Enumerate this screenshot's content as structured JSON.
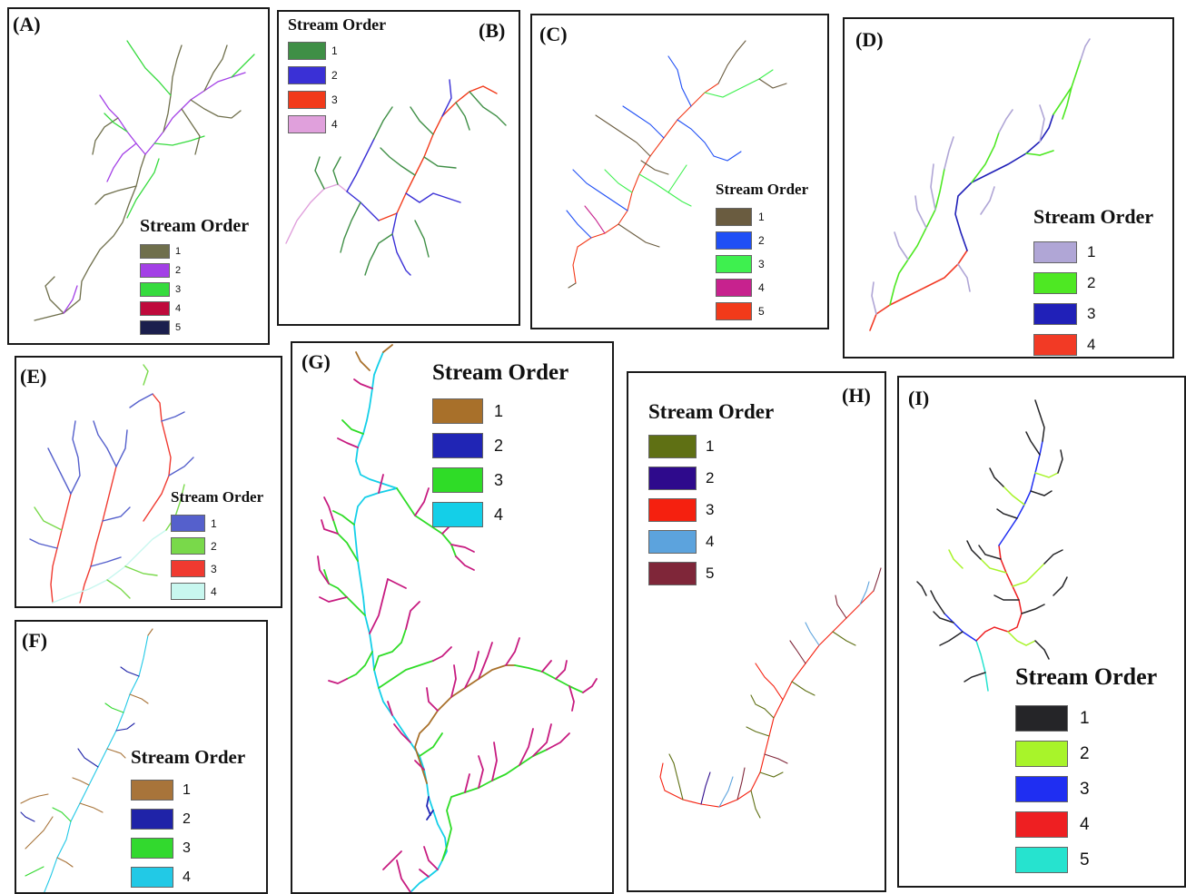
{
  "panels": [
    {
      "label": "(A)",
      "legend_title": "Stream Order",
      "classes": [
        {
          "order": "1",
          "color": "#6f6f4c"
        },
        {
          "order": "2",
          "color": "#a340e6"
        },
        {
          "order": "3",
          "color": "#36db3e"
        },
        {
          "order": "4",
          "color": "#bf0a3c"
        },
        {
          "order": "5",
          "color": "#1b1f4d"
        }
      ]
    },
    {
      "label": "(B)",
      "legend_title": "Stream Order",
      "classes": [
        {
          "order": "1",
          "color": "#3f8f46"
        },
        {
          "order": "2",
          "color": "#3a30d6"
        },
        {
          "order": "3",
          "color": "#f23a1a"
        },
        {
          "order": "4",
          "color": "#e0a0dc"
        }
      ]
    },
    {
      "label": "(C)",
      "legend_title": "Stream Order",
      "classes": [
        {
          "order": "1",
          "color": "#6a5c40"
        },
        {
          "order": "2",
          "color": "#1f4ff5"
        },
        {
          "order": "3",
          "color": "#3ef04f"
        },
        {
          "order": "4",
          "color": "#c7228e"
        },
        {
          "order": "5",
          "color": "#f23a1a"
        }
      ]
    },
    {
      "label": "(D)",
      "legend_title": "Stream Order",
      "classes": [
        {
          "order": "1",
          "color": "#b0a6d6"
        },
        {
          "order": "2",
          "color": "#4ee823"
        },
        {
          "order": "3",
          "color": "#2020b8"
        },
        {
          "order": "4",
          "color": "#f23a25"
        }
      ]
    },
    {
      "label": "(E)",
      "legend_title": "Stream Order",
      "classes": [
        {
          "order": "1",
          "color": "#5560cc"
        },
        {
          "order": "2",
          "color": "#79d94a"
        },
        {
          "order": "3",
          "color": "#f03a30"
        },
        {
          "order": "4",
          "color": "#c8f7ef"
        }
      ]
    },
    {
      "label": "(F)",
      "legend_title": "Stream Order",
      "classes": [
        {
          "order": "1",
          "color": "#a8743a"
        },
        {
          "order": "2",
          "color": "#1f23a8"
        },
        {
          "order": "3",
          "color": "#32d92e"
        },
        {
          "order": "4",
          "color": "#22c9e6"
        }
      ]
    },
    {
      "label": "(G)",
      "legend_title": "Stream Order",
      "classes": [
        {
          "order": "1",
          "color": "#a8702a"
        },
        {
          "order": "2",
          "color": "#2025b5"
        },
        {
          "order": "3",
          "color": "#2fdc27"
        },
        {
          "order": "4",
          "color": "#14cfe8"
        }
      ]
    },
    {
      "label": "(H)",
      "legend_title": "Stream Order",
      "classes": [
        {
          "order": "1",
          "color": "#5f7014"
        },
        {
          "order": "2",
          "color": "#2e0a8c"
        },
        {
          "order": "3",
          "color": "#f5200f"
        },
        {
          "order": "4",
          "color": "#5ca3dd"
        },
        {
          "order": "5",
          "color": "#7f2639"
        }
      ]
    },
    {
      "label": "(I)",
      "legend_title": "Stream Order",
      "classes": [
        {
          "order": "1",
          "color": "#252528"
        },
        {
          "order": "2",
          "color": "#a8f42a"
        },
        {
          "order": "3",
          "color": "#1f2ef2"
        },
        {
          "order": "4",
          "color": "#ee1f22"
        },
        {
          "order": "5",
          "color": "#26e3cf"
        }
      ]
    }
  ]
}
